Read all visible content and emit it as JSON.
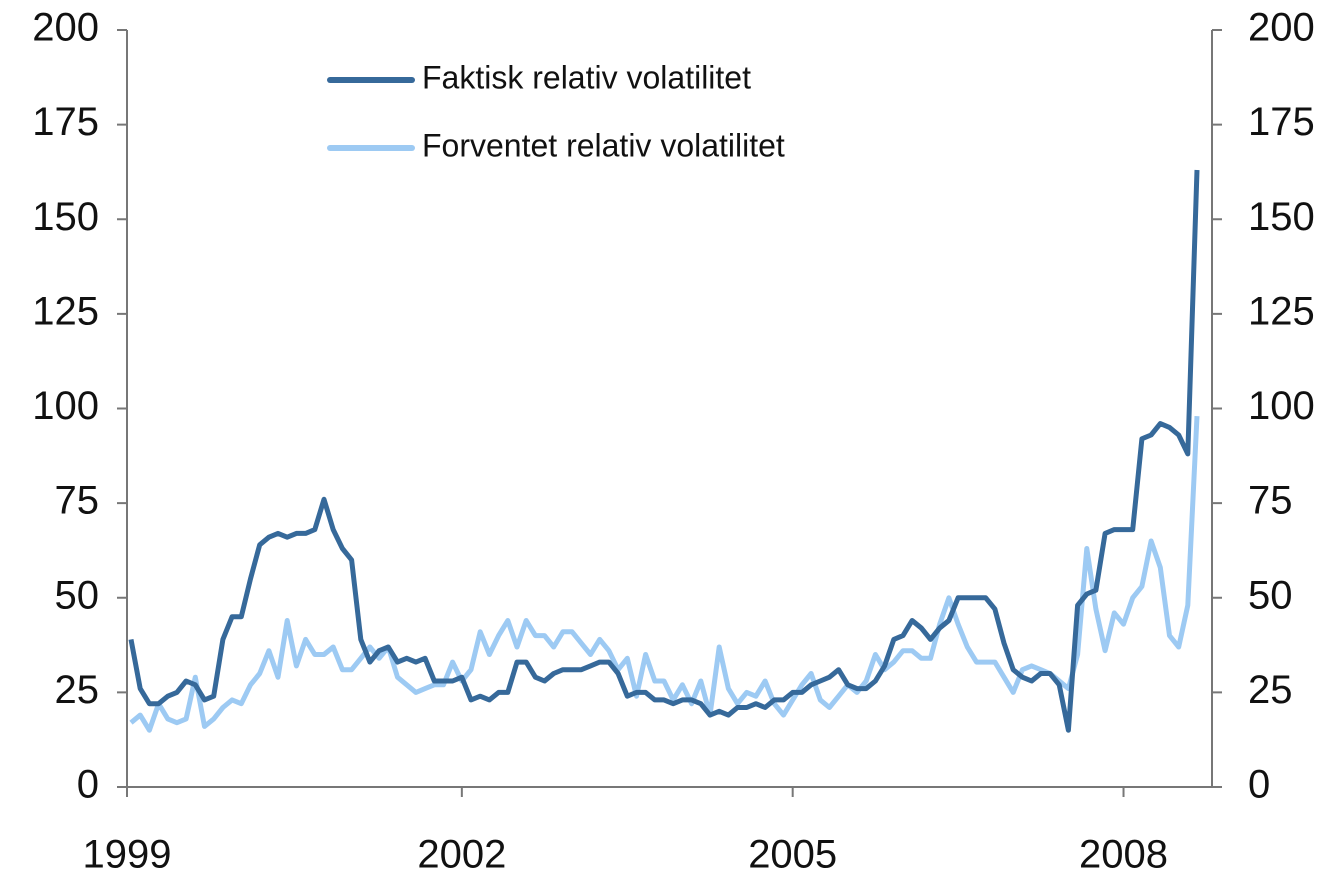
{
  "chart_data": {
    "type": "line",
    "categories": [
      "1999",
      null,
      null,
      null,
      null,
      null,
      null,
      null,
      null,
      null,
      null,
      null,
      null,
      null,
      null,
      null,
      null,
      null,
      null,
      null,
      null,
      null,
      null,
      null,
      null,
      null,
      null,
      null,
      null,
      null,
      null,
      null,
      null,
      null,
      null,
      null,
      "2002",
      null,
      null,
      null,
      null,
      null,
      null,
      null,
      null,
      null,
      null,
      null,
      null,
      null,
      null,
      null,
      null,
      null,
      null,
      null,
      null,
      null,
      null,
      null,
      null,
      null,
      null,
      null,
      null,
      null,
      null,
      null,
      null,
      null,
      null,
      null,
      "2005",
      null,
      null,
      null,
      null,
      null,
      null,
      null,
      null,
      null,
      null,
      null,
      null,
      null,
      null,
      null,
      null,
      null,
      null,
      null,
      null,
      null,
      null,
      null,
      null,
      null,
      null,
      null,
      null,
      null,
      null,
      null,
      null,
      null,
      null,
      null,
      "2008",
      null,
      null,
      null,
      null,
      null,
      null,
      null,
      null
    ],
    "series": [
      {
        "name": "Faktisk relativ volatilitet",
        "color": "#36699a",
        "values": [
          39,
          26,
          22,
          22,
          24,
          25,
          28,
          27,
          23,
          24,
          39,
          45,
          45,
          55,
          64,
          66,
          67,
          66,
          67,
          67,
          68,
          76,
          68,
          63,
          60,
          39,
          33,
          36,
          37,
          33,
          34,
          33,
          34,
          28,
          28,
          28,
          29,
          23,
          24,
          23,
          25,
          25,
          33,
          33,
          29,
          28,
          30,
          31,
          31,
          31,
          32,
          33,
          33,
          30,
          24,
          25,
          25,
          23,
          23,
          22,
          23,
          23,
          22,
          19,
          20,
          19,
          21,
          21,
          22,
          21,
          23,
          23,
          25,
          25,
          27,
          28,
          29,
          31,
          27,
          26,
          26,
          28,
          32,
          39,
          40,
          44,
          42,
          39,
          42,
          44,
          50,
          50,
          50,
          50,
          47,
          38,
          31,
          29,
          28,
          30,
          30,
          27,
          15,
          48,
          51,
          52,
          67,
          68,
          68,
          68,
          92,
          93,
          96,
          95,
          93,
          88,
          163
        ]
      },
      {
        "name": "Forventet relativ volatilitet",
        "color": "#9dcaf3",
        "values": [
          17,
          19,
          15,
          22,
          18,
          17,
          18,
          29,
          16,
          18,
          21,
          23,
          22,
          27,
          30,
          36,
          29,
          44,
          32,
          39,
          35,
          35,
          37,
          31,
          31,
          34,
          37,
          34,
          37,
          29,
          27,
          25,
          26,
          27,
          27,
          33,
          28,
          31,
          41,
          35,
          40,
          44,
          37,
          44,
          40,
          40,
          37,
          41,
          41,
          38,
          35,
          39,
          36,
          31,
          34,
          24,
          35,
          28,
          28,
          23,
          27,
          22,
          28,
          19,
          37,
          26,
          22,
          25,
          24,
          28,
          22,
          19,
          23,
          27,
          30,
          23,
          21,
          24,
          27,
          25,
          28,
          35,
          31,
          33,
          36,
          36,
          34,
          34,
          43,
          50,
          43,
          37,
          33,
          33,
          33,
          29,
          25,
          31,
          32,
          31,
          30,
          28,
          26,
          35,
          63,
          47,
          36,
          46,
          43,
          50,
          53,
          65,
          58,
          40,
          37,
          48,
          98
        ]
      }
    ],
    "ylim": [
      0,
      200
    ],
    "yticks": [
      0,
      25,
      50,
      75,
      100,
      125,
      150,
      175,
      200
    ],
    "y2lim": [
      0,
      200
    ],
    "y2ticks": [
      0,
      25,
      50,
      75,
      100,
      125,
      150,
      175,
      200
    ],
    "legend": "upper left",
    "grid": false
  }
}
